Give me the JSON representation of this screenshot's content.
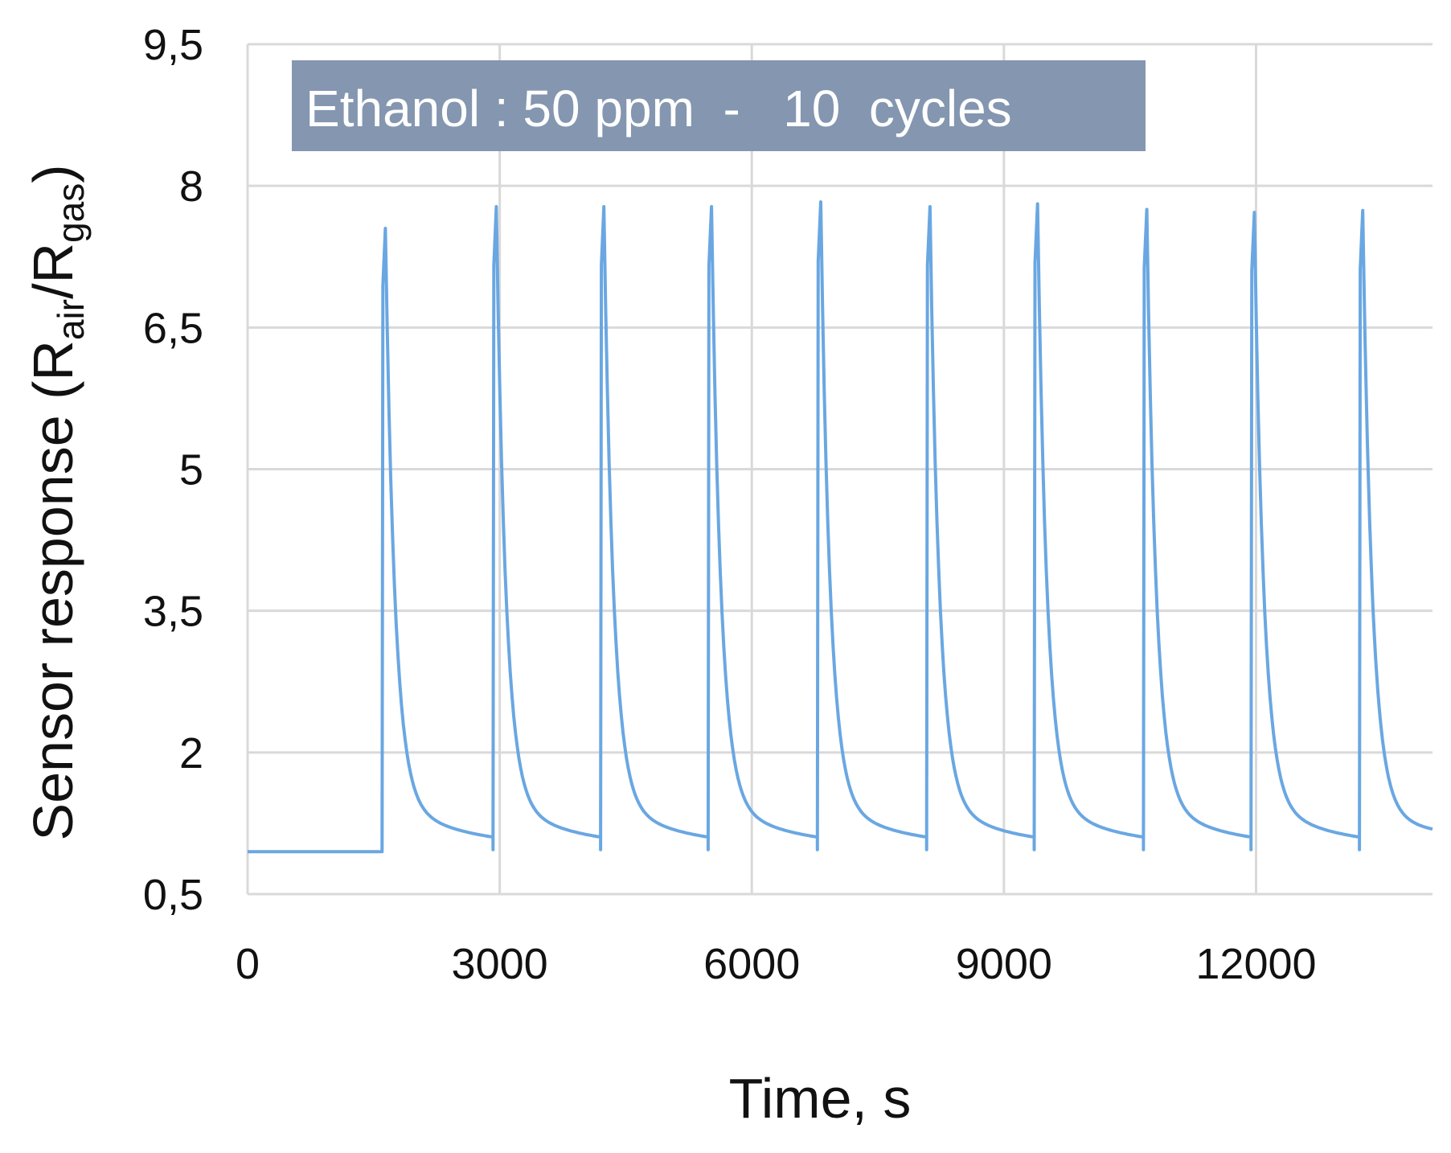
{
  "chart_data": {
    "type": "line",
    "title": "",
    "annotation": "Ethanol : 50 ppm  -   10  cycles",
    "xlabel": "Time, s",
    "ylabel_parts": {
      "main": "Sensor response (R",
      "sub1": "air",
      "mid": "/R",
      "sub2": "gas",
      "end": ")"
    },
    "xlim": [
      0,
      14100
    ],
    "ylim": [
      0.5,
      9.5
    ],
    "x_ticks": [
      0,
      3000,
      6000,
      9000,
      12000
    ],
    "x_tick_labels": [
      "0",
      "3000",
      "6000",
      "9000",
      "12000"
    ],
    "y_ticks": [
      0.5,
      2,
      3.5,
      5,
      6.5,
      8,
      9.5
    ],
    "y_tick_labels": [
      "0,5",
      "2",
      "3,5",
      "5",
      "6,5",
      "8",
      "9,5"
    ],
    "grid": true,
    "baseline": 0.95,
    "series": [
      {
        "name": "Ethanol 50 ppm",
        "color": "#6aa7e2",
        "start": 0,
        "pulses": [
          {
            "t_on": 1600,
            "peak": 7.55,
            "tail_end": 1.0
          },
          {
            "t_on": 2920,
            "peak": 7.78,
            "tail_end": 1.0
          },
          {
            "t_on": 4200,
            "peak": 7.78,
            "tail_end": 1.0
          },
          {
            "t_on": 5480,
            "peak": 7.78,
            "tail_end": 1.0
          },
          {
            "t_on": 6780,
            "peak": 7.83,
            "tail_end": 1.0
          },
          {
            "t_on": 8080,
            "peak": 7.78,
            "tail_end": 1.0
          },
          {
            "t_on": 9360,
            "peak": 7.81,
            "tail_end": 1.0
          },
          {
            "t_on": 10660,
            "peak": 7.75,
            "tail_end": 1.0
          },
          {
            "t_on": 11940,
            "peak": 7.72,
            "tail_end": 1.0
          },
          {
            "t_on": 13230,
            "peak": 7.74,
            "tail_end": 1.1
          }
        ],
        "end": 14100
      }
    ]
  },
  "colors": {
    "line": "#6aa7e2",
    "grid": "#d9d9d9",
    "annotation_bg": "#8496b0",
    "text": "#111111"
  }
}
